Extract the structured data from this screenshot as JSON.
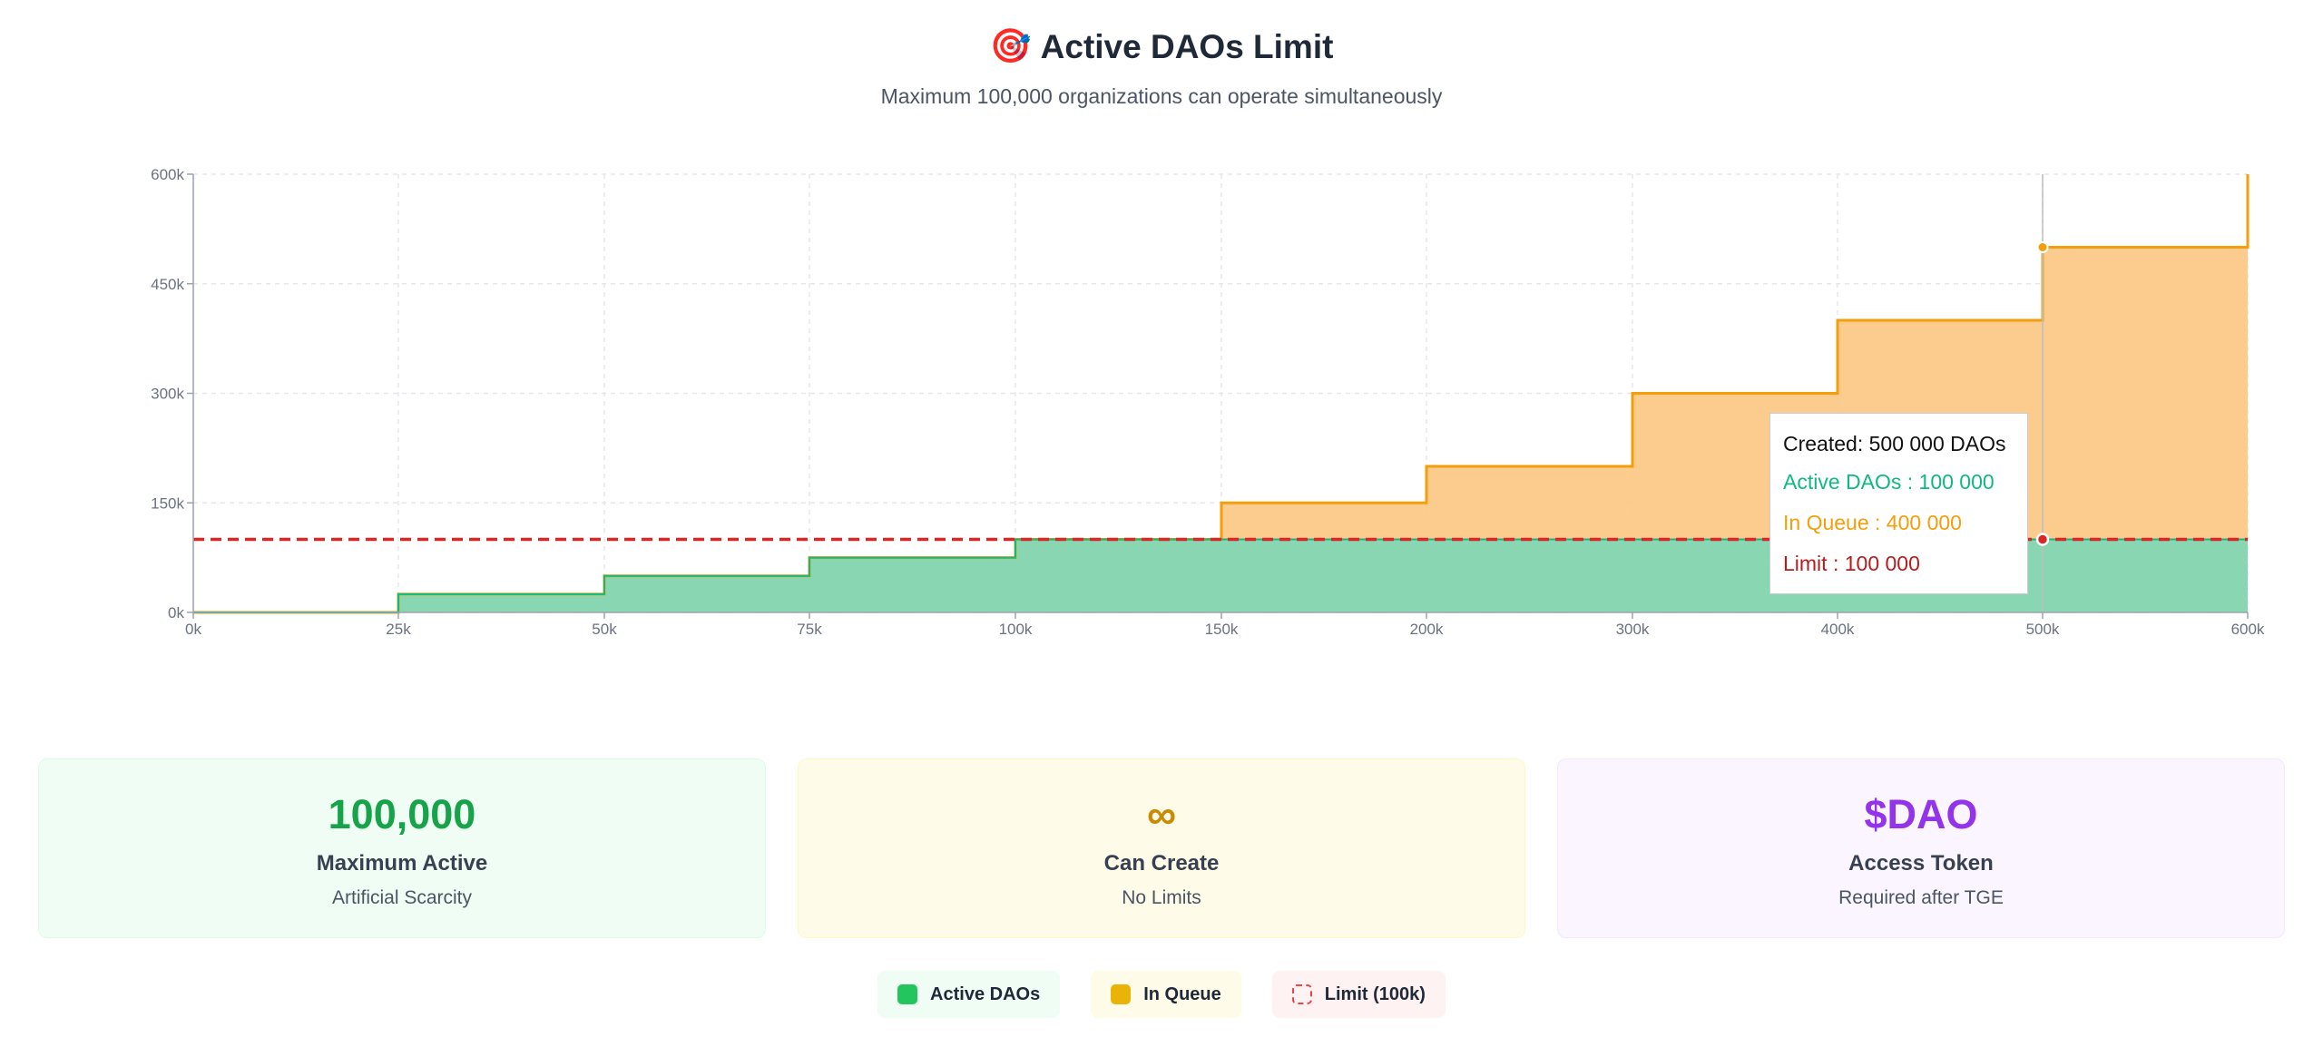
{
  "header": {
    "icon": "🎯",
    "title": "Active DAOs Limit",
    "subtitle": "Maximum 100,000 organizations can operate simultaneously"
  },
  "chart_data": {
    "type": "area",
    "step": "after",
    "stacked": true,
    "xlim": [
      0,
      600000
    ],
    "ylim": [
      0,
      600000
    ],
    "x_ticks": [
      0,
      25000,
      50000,
      75000,
      100000,
      150000,
      200000,
      300000,
      400000,
      500000,
      600000
    ],
    "x_tick_labels": [
      "0k",
      "25k",
      "50k",
      "75k",
      "100k",
      "150k",
      "200k",
      "300k",
      "400k",
      "500k",
      "600k"
    ],
    "y_ticks": [
      0,
      150000,
      300000,
      450000,
      600000
    ],
    "y_tick_labels": [
      "0k",
      "150k",
      "300k",
      "450k",
      "600k"
    ],
    "x": [
      0,
      25000,
      50000,
      75000,
      100000,
      150000,
      200000,
      300000,
      400000,
      500000,
      600000
    ],
    "series": [
      {
        "name": "Active DAOs",
        "color": "#10b981",
        "values": [
          0,
          25000,
          50000,
          75000,
          100000,
          100000,
          100000,
          100000,
          100000,
          100000,
          100000
        ]
      },
      {
        "name": "In Queue",
        "color": "#f59e0b",
        "values": [
          0,
          0,
          0,
          0,
          0,
          50000,
          100000,
          200000,
          300000,
          400000,
          500000
        ]
      }
    ],
    "reference_line": {
      "name": "Limit",
      "value": 100000,
      "color": "#dc2626",
      "style": "dashed"
    },
    "grid": true,
    "tooltip": {
      "x": 500000,
      "created_label": "Created: 500 000 DAOs",
      "active_label": "Active DAOs : 100 000",
      "queue_label": "In Queue : 400 000",
      "limit_label": "Limit : 100 000"
    }
  },
  "cards": [
    {
      "value": "100,000",
      "label": "Maximum Active",
      "sub": "Artificial Scarcity"
    },
    {
      "value": "∞",
      "label": "Can Create",
      "sub": "No Limits"
    },
    {
      "value": "$DAO",
      "label": "Access Token",
      "sub": "Required after TGE"
    }
  ],
  "legend": [
    {
      "label": "Active DAOs",
      "color": "#22c55e"
    },
    {
      "label": "In Queue",
      "color": "#eab308"
    },
    {
      "label": "Limit (100k)",
      "color": "#ef4444"
    }
  ]
}
